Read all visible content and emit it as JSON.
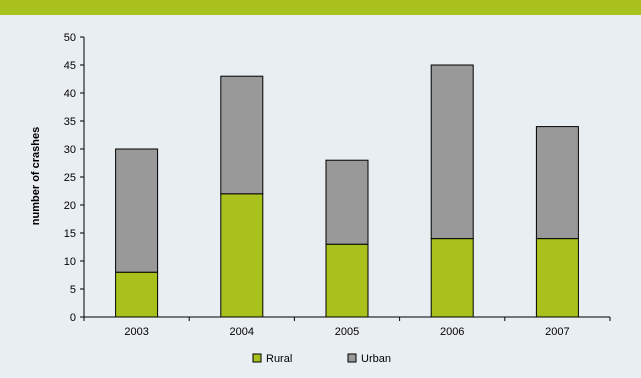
{
  "colors": {
    "band": "#a9c11c",
    "background": "#e9eef2",
    "rural": "#a9c11c",
    "urban": "#999999",
    "outline": "#000000"
  },
  "chart_data": {
    "type": "bar",
    "stacked": true,
    "categories": [
      "2003",
      "2004",
      "2005",
      "2006",
      "2007"
    ],
    "series": [
      {
        "name": "Rural",
        "values": [
          8,
          22,
          13,
          14,
          14
        ]
      },
      {
        "name": "Urban",
        "values": [
          22,
          21,
          15,
          31,
          20
        ]
      }
    ],
    "title": "",
    "xlabel": "",
    "ylabel": "number of crashes",
    "ylim": [
      0,
      50
    ],
    "yticks": [
      "0",
      "5",
      "10",
      "15",
      "20",
      "25",
      "30",
      "35",
      "40",
      "45",
      "50"
    ],
    "grid": false,
    "legend": "bottom"
  }
}
